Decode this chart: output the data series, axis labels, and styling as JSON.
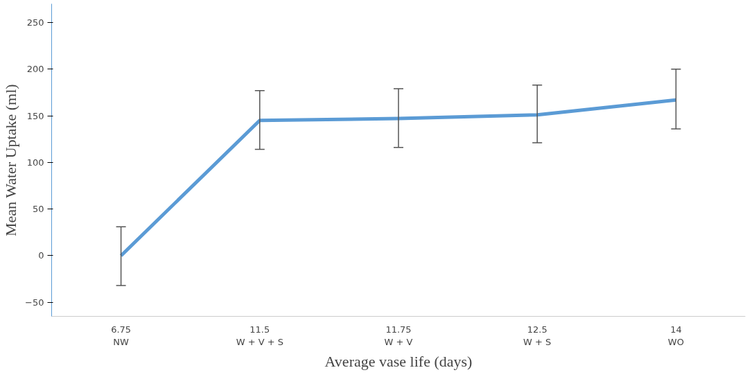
{
  "chart_data": {
    "type": "line",
    "xlabel": "Average vase life (days)",
    "ylabel": "Mean Water Uptake (ml)",
    "categories": [
      "6.75\nNW",
      "11.5\nW + V + S",
      "11.75\nW + V",
      "12.5\nW + S",
      "14\nWO"
    ],
    "series": [
      {
        "color": "#5b9bd5",
        "values": [
          0,
          145,
          147,
          151,
          167
        ],
        "errors": [
          [
            -32,
            31
          ],
          [
            114,
            177
          ],
          [
            116,
            179
          ],
          [
            121,
            183
          ],
          [
            136,
            200
          ]
        ]
      }
    ],
    "ylim": [
      -65,
      270
    ],
    "yticks": [
      -50,
      0,
      50,
      100,
      150,
      200,
      250
    ],
    "grid": false,
    "marker": "none",
    "line_style": "solid"
  }
}
